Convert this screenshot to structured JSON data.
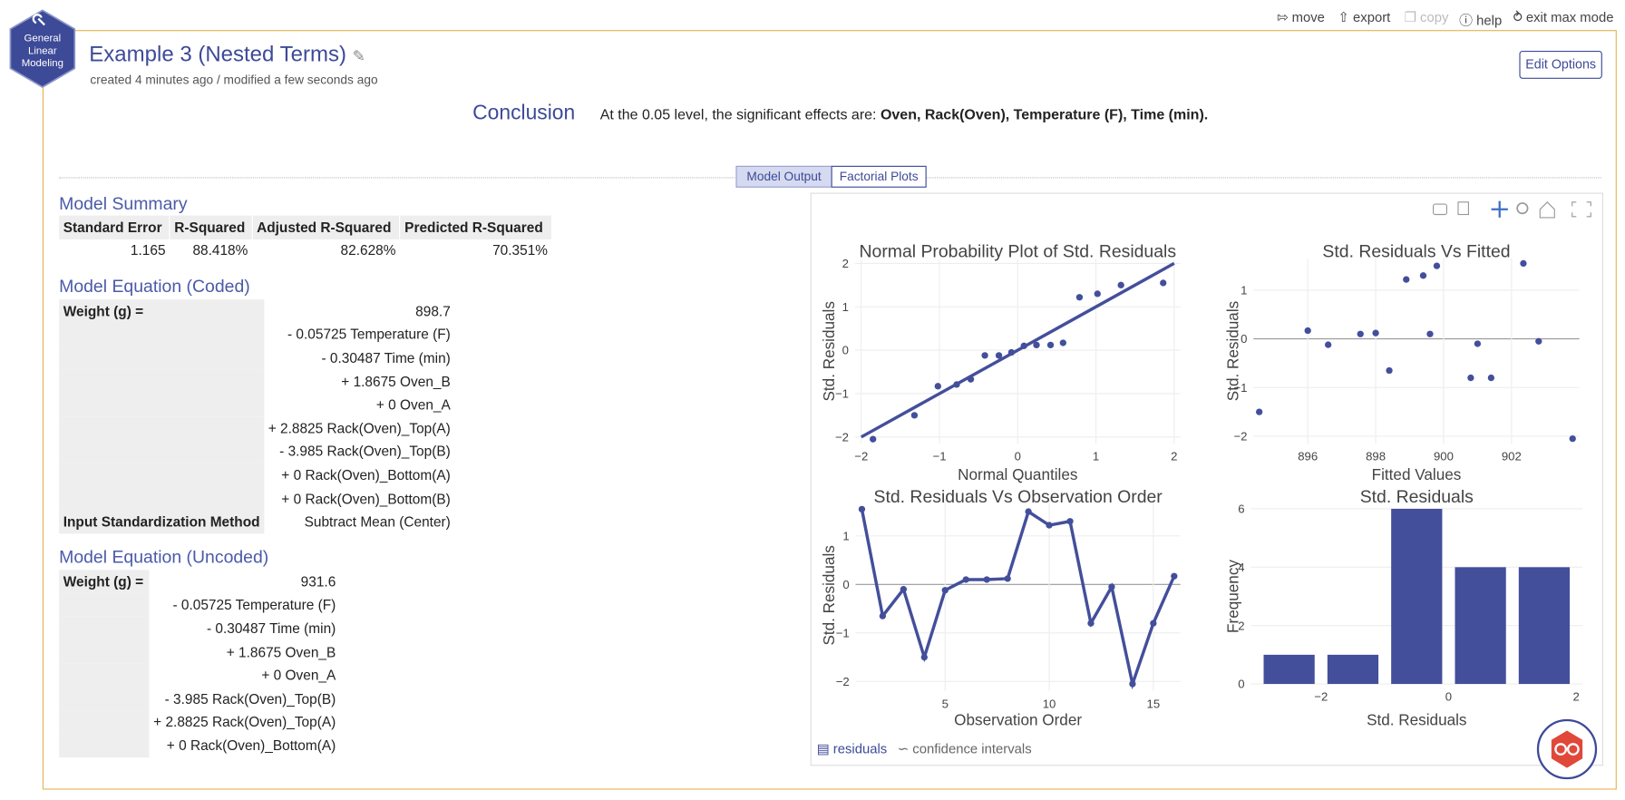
{
  "toolbar": {
    "move": "move",
    "export": "export",
    "copy": "copy",
    "help": "help",
    "exit": "exit max mode"
  },
  "logo": [
    "General",
    "Linear",
    "Modeling"
  ],
  "header": {
    "title": "Example 3 (Nested Terms)",
    "subtitle": "created 4 minutes ago / modified a few seconds ago",
    "edit_button": "Edit Options"
  },
  "conclusion": {
    "heading": "Conclusion",
    "text": "At the 0.05 level, the significant effects are:",
    "effects": "Oven, Rack(Oven), Temperature (F), Time (min)."
  },
  "tabs": [
    "Model Output",
    "Factorial Plots"
  ],
  "model_summary": {
    "title": "Model Summary",
    "headers": [
      "Standard Error",
      "R-Squared",
      "Adjusted R-Squared",
      "Predicted R-Squared"
    ],
    "values": [
      "1.165",
      "88.418%",
      "82.628%",
      "70.351%"
    ]
  },
  "coded": {
    "title": "Model Equation (Coded)",
    "response": "Weight (g) =",
    "intercept": "898.7",
    "terms": [
      "- 0.05725 Temperature (F)",
      "- 0.30487 Time (min)",
      "+ 1.8675 Oven_B",
      "+ 0 Oven_A",
      "+ 2.8825 Rack(Oven)_Top(A)",
      "- 3.985 Rack(Oven)_Top(B)",
      "+ 0 Rack(Oven)_Bottom(A)",
      "+ 0 Rack(Oven)_Bottom(B)"
    ],
    "method_label": "Input Standardization Method",
    "method": "Subtract Mean (Center)"
  },
  "uncoded": {
    "title": "Model Equation (Uncoded)",
    "response": "Weight (g) =",
    "intercept": "931.6",
    "terms": [
      "- 0.05725 Temperature (F)",
      "- 0.30487 Time (min)",
      "+ 1.8675 Oven_B",
      "+ 0 Oven_A",
      "- 3.985 Rack(Oven)_Top(B)",
      "+ 2.8825 Rack(Oven)_Top(A)",
      "+ 0 Rack(Oven)_Bottom(A)"
    ]
  },
  "plot_tabs": [
    "residuals",
    "confidence intervals"
  ],
  "chart_data": [
    {
      "type": "scatter",
      "title": "Normal Probability Plot of Std. Residuals",
      "x_label": "Normal Quantiles",
      "y_label": "Std. Residuals",
      "color": "#434f9b",
      "x": [
        -1.85,
        -1.32,
        -1.02,
        -0.78,
        -0.6,
        -0.42,
        -0.24,
        -0.08,
        0.08,
        0.24,
        0.42,
        0.58,
        0.79,
        1.02,
        1.32,
        1.86
      ],
      "values": [
        -2.05,
        -1.5,
        -0.83,
        -0.79,
        -0.67,
        -0.12,
        -0.12,
        -0.05,
        0.1,
        0.12,
        0.12,
        0.17,
        1.22,
        1.3,
        1.5,
        1.55
      ],
      "fit_line": {
        "x": [
          -2,
          2
        ],
        "values": [
          -2,
          2
        ]
      },
      "xlim": [
        -2.08,
        2.08
      ],
      "xticks": [
        {
          "value": -2,
          "label": "−2"
        },
        {
          "value": -1,
          "label": "−1"
        },
        0,
        1,
        2
      ],
      "ylim": [
        -2.15,
        2.1
      ],
      "yticks": [
        {
          "value": -2,
          "label": "−2"
        },
        {
          "value": -1,
          "label": "−1"
        },
        0,
        1,
        2
      ],
      "grid": true,
      "zero_line": false
    },
    {
      "type": "scatter",
      "title": "Std. Residuals Vs Fitted",
      "x_label": "Fitted Values",
      "y_label": "Std. Residuals",
      "color": "#434f9b",
      "x": [
        894.57,
        896.0,
        896.6,
        897.55,
        898.0,
        898.4,
        898.9,
        899.4,
        899.6,
        899.8,
        900.8,
        901.0,
        901.4,
        902.35,
        902.8,
        903.8
      ],
      "values": [
        -1.5,
        0.17,
        -0.12,
        0.1,
        0.12,
        -0.65,
        1.22,
        1.3,
        0.1,
        1.5,
        -0.8,
        -0.1,
        -0.8,
        1.55,
        -0.05,
        -2.05
      ],
      "xlim": [
        894.4,
        904
      ],
      "xticks": [
        896,
        898,
        900,
        902
      ],
      "ylim": [
        -2.15,
        1.65
      ],
      "yticks": [
        {
          "value": -2,
          "label": "−2"
        },
        {
          "value": -1,
          "label": "−1"
        },
        0,
        1
      ],
      "grid": true,
      "zero_line": true
    },
    {
      "type": "line",
      "title": "Std. Residuals Vs Observation Order",
      "x_label": "Observation Order",
      "y_label": "Std. Residuals",
      "color": "#434f9b",
      "markers": true,
      "x": [
        1,
        2,
        3,
        4,
        5,
        6,
        7,
        8,
        9,
        10,
        11,
        12,
        13,
        14,
        15,
        16
      ],
      "values": [
        1.55,
        -0.65,
        -0.1,
        -1.5,
        -0.12,
        0.1,
        0.1,
        0.12,
        1.5,
        1.22,
        1.3,
        -0.8,
        -0.05,
        -2.05,
        -0.8,
        0.17
      ],
      "xlim": [
        0.7,
        16.3
      ],
      "xticks": [
        5,
        10,
        15
      ],
      "ylim": [
        -2.2,
        1.75
      ],
      "yticks": [
        {
          "value": -2,
          "label": "−2"
        },
        {
          "value": -1,
          "label": "−1"
        },
        0,
        1
      ],
      "grid": true,
      "zero_line": true
    },
    {
      "type": "histogram",
      "title": "Std. Residuals",
      "x_label": "Std. Residuals",
      "y_label": "Frequency",
      "color": "#434f9b",
      "bins": [
        -3,
        -2,
        -1,
        0,
        1,
        2
      ],
      "values": [
        1,
        1,
        6,
        4,
        4
      ],
      "xlim": [
        -3.1,
        2.1
      ],
      "xticks": [
        {
          "value": -2,
          "label": "−2"
        },
        0,
        2
      ],
      "ylim": [
        0,
        6
      ],
      "yticks": [
        0,
        2,
        4,
        6
      ],
      "grid": "y",
      "zero_line": false
    }
  ]
}
